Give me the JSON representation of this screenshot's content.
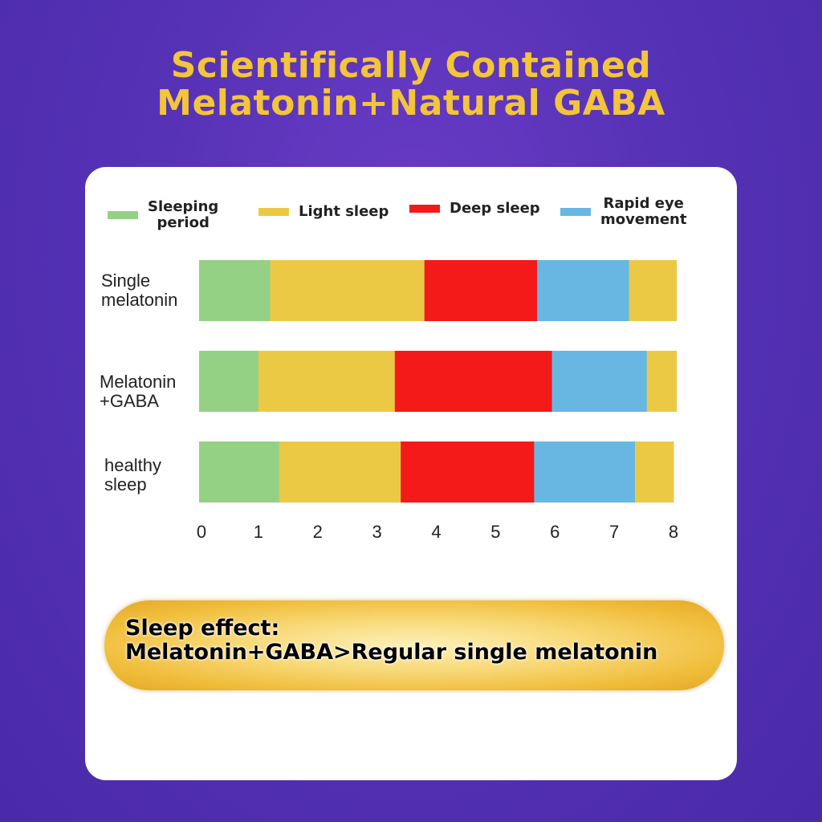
{
  "header": {
    "line1": "Scientifically Contained",
    "line2": "Melatonin+Natural GABA"
  },
  "chart_data": {
    "type": "bar",
    "orientation": "horizontal",
    "stacked": true,
    "categories": [
      "Single\nmelatonin",
      "Melatonin\n+GABA",
      "healthy\nsleep"
    ],
    "category_lines": [
      [
        "Single",
        "melatonin"
      ],
      [
        "Melatonin",
        "+GABA"
      ],
      [
        "healthy",
        "sleep"
      ]
    ],
    "series": [
      {
        "name": "Sleeping period",
        "legend_lines": [
          "Sleeping",
          "period"
        ],
        "color": "#95d185",
        "values": [
          1.2,
          1.0,
          1.35
        ]
      },
      {
        "name": "Light sleep",
        "legend_lines": [
          "Light sleep"
        ],
        "color": "#ecc945",
        "values": [
          2.6,
          2.3,
          2.05
        ]
      },
      {
        "name": "Deep sleep",
        "legend_lines": [
          "Deep sleep"
        ],
        "color": "#f41a1a",
        "values": [
          1.9,
          2.65,
          2.25
        ]
      },
      {
        "name": "Rapid eye movement",
        "legend_lines": [
          "Rapid eye",
          "movement"
        ],
        "color": "#68b7e2",
        "values": [
          1.55,
          1.6,
          1.7
        ]
      },
      {
        "name": "Light sleep (end)",
        "legend_lines": [],
        "color": "#ecc945",
        "values": [
          0.8,
          0.5,
          0.65
        ]
      }
    ],
    "xlim": [
      0,
      8
    ],
    "xticks": [
      "0",
      "1",
      "2",
      "3",
      "4",
      "5",
      "6",
      "7",
      "8"
    ],
    "grid": false,
    "legend_position": "top"
  },
  "summary": {
    "line1": "Sleep effect:",
    "line2": "Melatonin+GABA>Regular single melatonin"
  }
}
